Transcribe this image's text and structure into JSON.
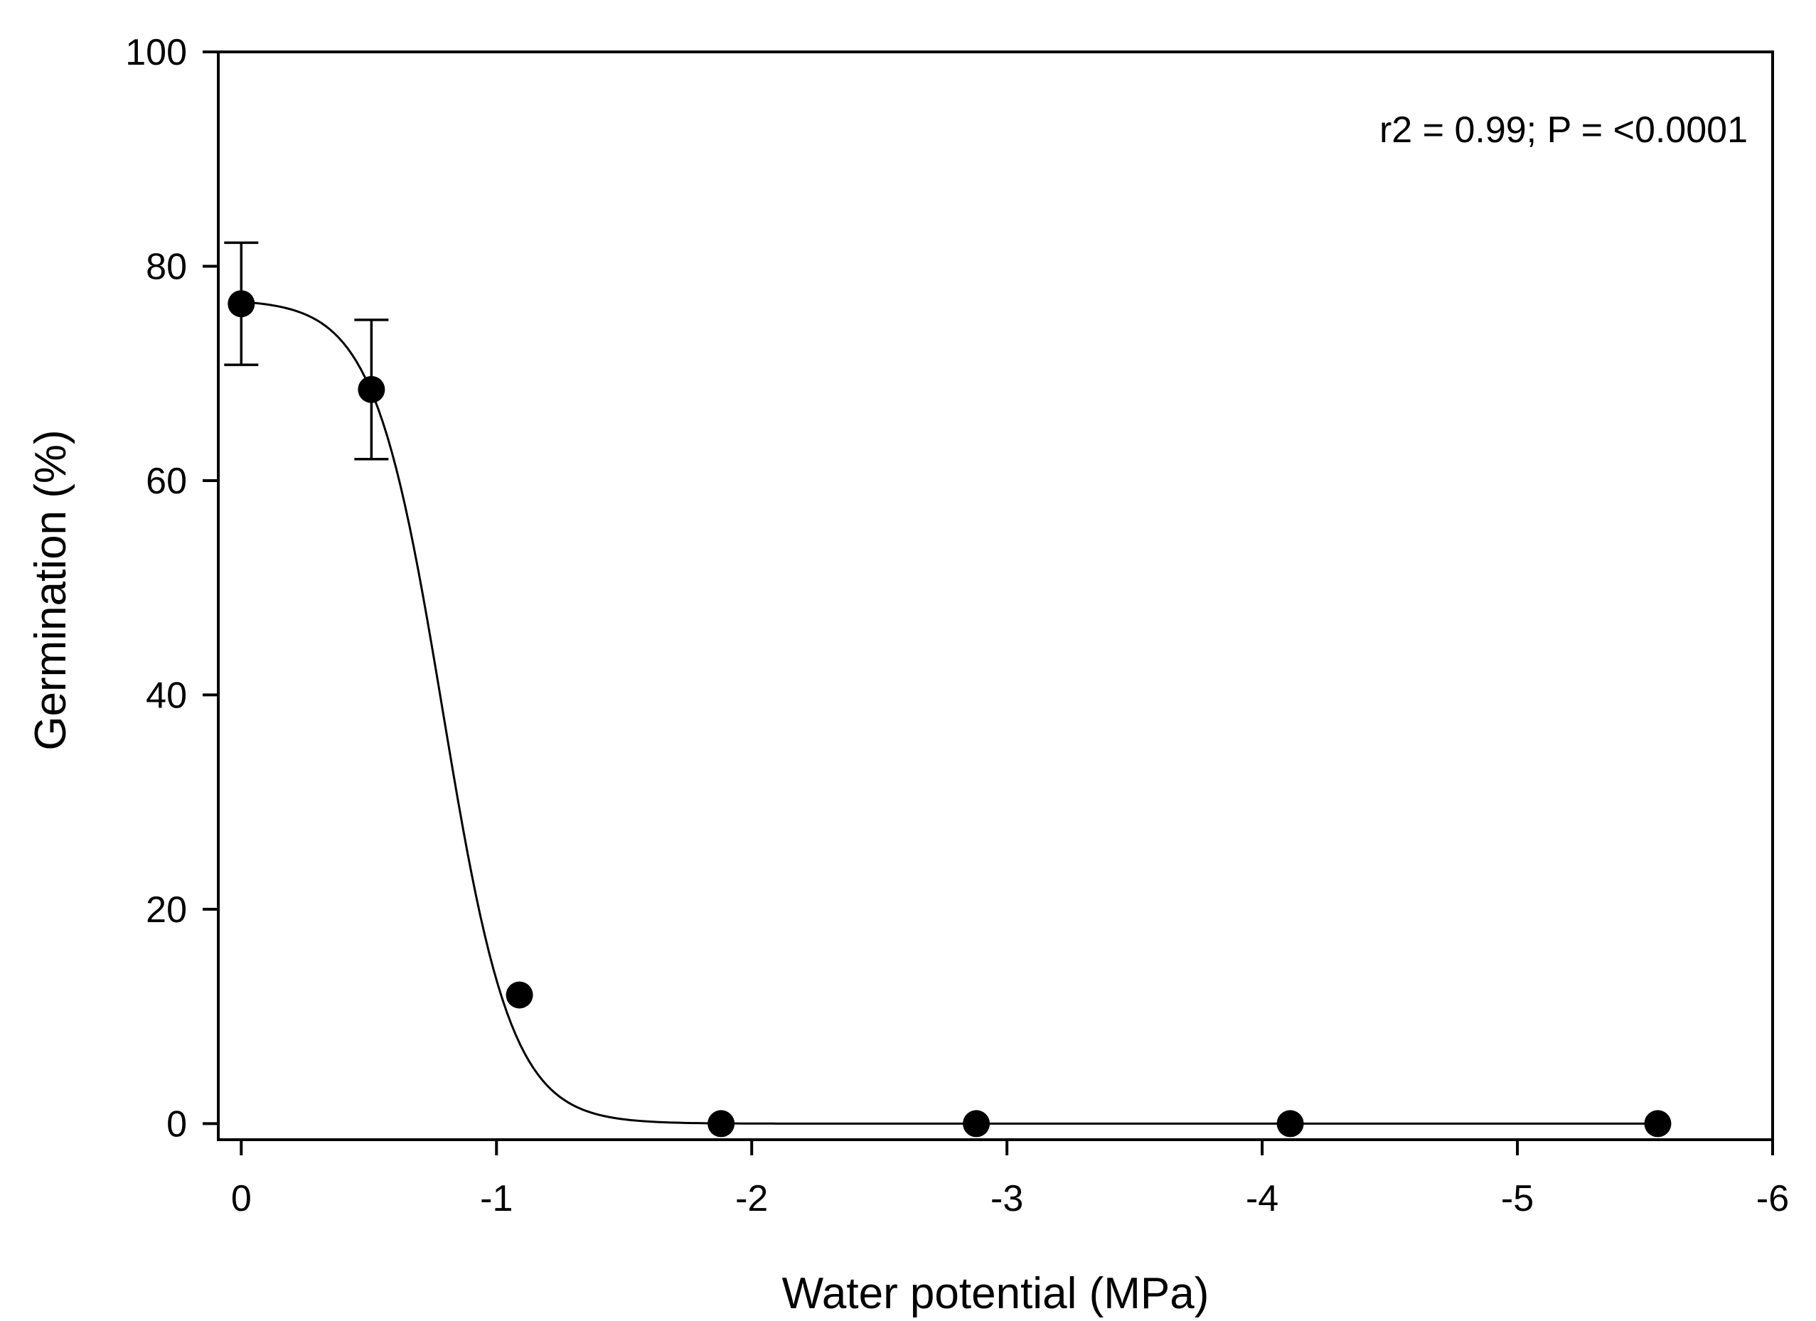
{
  "chart_data": {
    "type": "scatter",
    "title": "",
    "xlabel": "Water potential (MPa)",
    "ylabel": "Germination (%)",
    "xlim": [
      0.09,
      -6
    ],
    "ylim": [
      -1.5,
      100
    ],
    "xticks": [
      0,
      -1,
      -2,
      -3,
      -4,
      -5,
      -6
    ],
    "xtick_labels": [
      "0",
      "-1",
      "-2",
      "-3",
      "-4",
      "-5",
      "-6"
    ],
    "yticks": [
      0,
      20,
      40,
      60,
      80,
      100
    ],
    "ytick_labels": [
      "0",
      "20",
      "40",
      "60",
      "80",
      "100"
    ],
    "series": [
      {
        "name": "Germination",
        "x": [
          0,
          -0.51,
          -1.09,
          -1.88,
          -2.88,
          -4.11,
          -5.55
        ],
        "y": [
          76.5,
          68.5,
          12.0,
          0,
          0,
          0,
          0
        ],
        "error": [
          5.7,
          6.5,
          0,
          0,
          0,
          0,
          0
        ]
      }
    ],
    "fit": {
      "model": "sigmoid",
      "a": 76.9,
      "x0": -0.79,
      "b": 0.135
    },
    "annotation": "r2 = 0.99; P = <0.0001",
    "grid": false,
    "legend": "none"
  },
  "colors": {
    "marker": "#000000",
    "line": "#000000",
    "background": "#ffffff"
  }
}
